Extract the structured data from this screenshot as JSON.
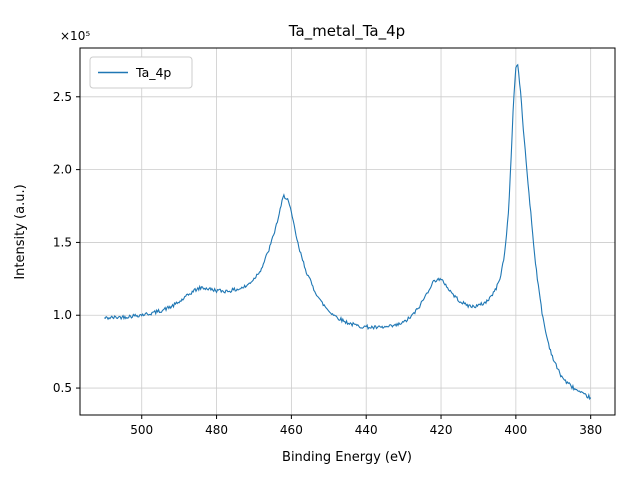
{
  "chart_data": {
    "type": "line",
    "title": "Ta_metal_Ta_4p",
    "xlabel": "Binding Energy (eV)",
    "ylabel": "Intensity (a.u.)",
    "offset_text": "×10⁵",
    "x_axis_reversed": true,
    "xlim": [
      516.5,
      373.5
    ],
    "ylim": [
      0.315,
      2.835
    ],
    "x_ticks": [
      500,
      480,
      460,
      440,
      420,
      400,
      380
    ],
    "y_ticks": [
      0.5,
      1.0,
      1.5,
      2.0,
      2.5
    ],
    "grid": true,
    "legend": {
      "position": "upper left",
      "entries": [
        {
          "label": "Ta_4p",
          "color": "#1f77b4"
        }
      ]
    },
    "series": [
      {
        "name": "Ta_4p",
        "color": "#1f77b4",
        "y_scale": 100000,
        "x": [
          510,
          507,
          504,
          501,
          498,
          495,
          492,
          490,
          488,
          486,
          484,
          482,
          480,
          478,
          476,
          474,
          472,
          470,
          468,
          466,
          465,
          464,
          463,
          462.5,
          462,
          461,
          460,
          459,
          458,
          456,
          454,
          452,
          450,
          448,
          446,
          444,
          442,
          440,
          438,
          436,
          434,
          432,
          430,
          428,
          426,
          424,
          423,
          422,
          421,
          420,
          419,
          418,
          416,
          414,
          412,
          410,
          408,
          406,
          405,
          404,
          403,
          402,
          401.5,
          401,
          400.5,
          400,
          399.5,
          399,
          398.5,
          398,
          397,
          396,
          395,
          394,
          393,
          392,
          391,
          390,
          389,
          388,
          387,
          386,
          385,
          384,
          383,
          382,
          381,
          380
        ],
        "y": [
          0.98,
          0.985,
          0.99,
          1.0,
          1.01,
          1.03,
          1.06,
          1.09,
          1.13,
          1.17,
          1.19,
          1.18,
          1.17,
          1.165,
          1.17,
          1.18,
          1.2,
          1.25,
          1.32,
          1.45,
          1.53,
          1.62,
          1.72,
          1.78,
          1.82,
          1.8,
          1.7,
          1.58,
          1.46,
          1.3,
          1.18,
          1.09,
          1.03,
          0.99,
          0.96,
          0.94,
          0.925,
          0.92,
          0.915,
          0.915,
          0.92,
          0.93,
          0.95,
          0.99,
          1.05,
          1.14,
          1.19,
          1.23,
          1.25,
          1.24,
          1.22,
          1.18,
          1.12,
          1.08,
          1.06,
          1.065,
          1.09,
          1.15,
          1.2,
          1.28,
          1.42,
          1.7,
          1.95,
          2.25,
          2.52,
          2.7,
          2.72,
          2.6,
          2.45,
          2.28,
          1.98,
          1.7,
          1.42,
          1.2,
          1.02,
          0.88,
          0.78,
          0.7,
          0.64,
          0.59,
          0.555,
          0.53,
          0.51,
          0.49,
          0.47,
          0.455,
          0.445,
          0.435
        ]
      }
    ]
  },
  "colors": {
    "line": "#1f77b4",
    "grid": "#cccccc",
    "axes_edge": "#000000",
    "background": "#ffffff",
    "legend_border": "#cccccc"
  }
}
